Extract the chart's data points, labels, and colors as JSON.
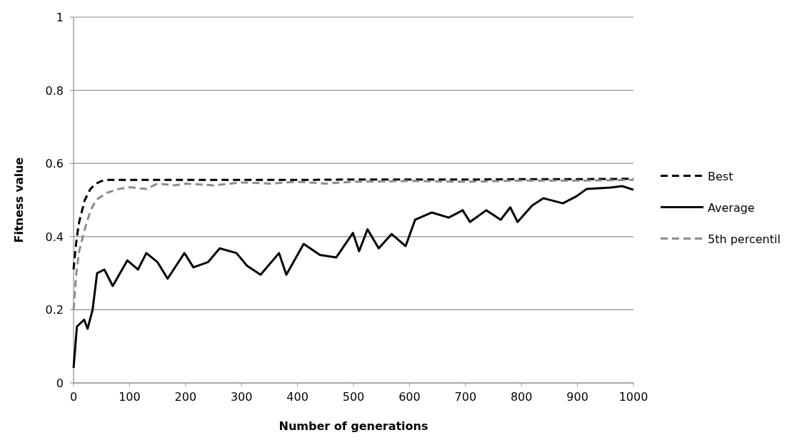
{
  "chart_data": {
    "type": "line",
    "xlabel": "Number of generations",
    "ylabel": "Fitness value",
    "xlim": [
      0,
      1000
    ],
    "ylim": [
      0,
      1
    ],
    "xticks": [
      0,
      100,
      200,
      300,
      400,
      500,
      600,
      700,
      800,
      900,
      1000
    ],
    "yticks": [
      0,
      {
        "value": 0.2,
        "label": "0.2"
      },
      {
        "value": 0.4,
        "label": "0.4"
      },
      {
        "value": 0.6,
        "label": "0.6"
      },
      {
        "value": 0.8,
        "label": "0.8"
      },
      1
    ],
    "grid": "y",
    "legend": "right",
    "series": [
      {
        "name": "Best",
        "color": "#000000",
        "line_style": "dashed",
        "x": [
          0,
          3,
          6,
          10,
          15,
          20,
          30,
          40,
          50,
          60,
          100,
          200,
          300,
          400,
          500,
          600,
          700,
          800,
          900,
          1000
        ],
        "values": [
          0.31,
          0.36,
          0.4,
          0.44,
          0.47,
          0.5,
          0.53,
          0.545,
          0.552,
          0.555,
          0.555,
          0.555,
          0.555,
          0.555,
          0.556,
          0.556,
          0.556,
          0.557,
          0.557,
          0.558
        ]
      },
      {
        "name": "Average",
        "color": "#000000",
        "line_style": "solid",
        "x": [
          0,
          6,
          19,
          25,
          34,
          42,
          55,
          70,
          96,
          115,
          130,
          150,
          168,
          198,
          214,
          240,
          261,
          291,
          310,
          334,
          367,
          380,
          411,
          440,
          469,
          499,
          510,
          525,
          545,
          568,
          593,
          610,
          640,
          670,
          695,
          708,
          737,
          763,
          780,
          793,
          819,
          839,
          874,
          899,
          916,
          959,
          980,
          1000
        ],
        "values": [
          0.041,
          0.154,
          0.173,
          0.148,
          0.2,
          0.3,
          0.31,
          0.265,
          0.335,
          0.31,
          0.355,
          0.33,
          0.285,
          0.355,
          0.316,
          0.33,
          0.368,
          0.355,
          0.32,
          0.296,
          0.355,
          0.296,
          0.38,
          0.35,
          0.343,
          0.41,
          0.36,
          0.42,
          0.368,
          0.407,
          0.374,
          0.446,
          0.466,
          0.452,
          0.472,
          0.44,
          0.472,
          0.446,
          0.48,
          0.44,
          0.485,
          0.505,
          0.491,
          0.511,
          0.53,
          0.534,
          0.538,
          0.528
        ]
      },
      {
        "name": "5th percentil",
        "color": "#8c8c8c",
        "line_style": "dashed",
        "x": [
          0,
          5,
          10,
          20,
          30,
          40,
          50,
          60,
          80,
          100,
          130,
          150,
          180,
          200,
          250,
          300,
          350,
          400,
          450,
          500,
          600,
          700,
          800,
          900,
          1000
        ],
        "values": [
          0.2,
          0.3,
          0.36,
          0.42,
          0.47,
          0.5,
          0.51,
          0.52,
          0.53,
          0.535,
          0.53,
          0.545,
          0.54,
          0.545,
          0.54,
          0.548,
          0.545,
          0.55,
          0.545,
          0.55,
          0.552,
          0.55,
          0.553,
          0.553,
          0.555
        ]
      }
    ]
  }
}
